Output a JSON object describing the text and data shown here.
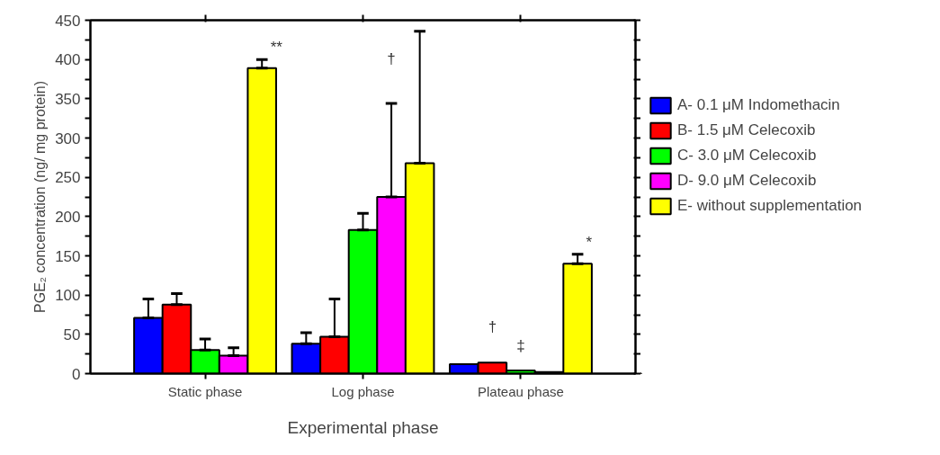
{
  "chart_data": {
    "type": "bar",
    "categories": [
      "Static phase",
      "Log phase",
      "Plateau phase"
    ],
    "xlabel": "Experimental phase",
    "ylabel": "PGE₂ concentration (ng/ mg protein)",
    "ylim": [
      0,
      450
    ],
    "yticks": [
      0,
      {
        "value": 25,
        "label": null
      },
      50,
      {
        "value": 75,
        "label": null
      },
      100,
      {
        "value": 125,
        "label": null
      },
      150,
      {
        "value": 175,
        "label": null
      },
      200,
      {
        "value": 225,
        "label": null
      },
      250,
      {
        "value": 275,
        "label": null
      },
      300,
      {
        "value": 325,
        "label": null
      },
      350,
      {
        "value": 375,
        "label": null
      },
      400,
      {
        "value": 425,
        "label": null
      },
      450
    ],
    "series": [
      {
        "name": "A- 0.1 μM Indomethacin",
        "color": "#0000ff",
        "values": [
          71,
          38,
          12
        ],
        "errors": [
          [
            71,
            95
          ],
          [
            38,
            52
          ],
          null
        ]
      },
      {
        "name": "B- 1.5 μM Celecoxib",
        "color": "#ff0000",
        "values": [
          88,
          47,
          14
        ],
        "errors": [
          [
            88,
            102
          ],
          [
            47,
            95
          ],
          null
        ]
      },
      {
        "name": "C- 3.0 μM Celecoxib",
        "color": "#00ff00",
        "values": [
          30,
          183,
          4
        ],
        "errors": [
          [
            30,
            44
          ],
          [
            183,
            204
          ],
          null
        ]
      },
      {
        "name": "D- 9.0 μM Celecoxib",
        "color": "#ff00ff",
        "values": [
          23,
          225,
          2
        ],
        "errors": [
          [
            23,
            33
          ],
          [
            225,
            344
          ],
          null
        ]
      },
      {
        "name": "E- without supplementation",
        "color": "#ffff00",
        "values": [
          389,
          268,
          140
        ],
        "errors": [
          [
            389,
            400
          ],
          [
            268,
            436
          ],
          [
            140,
            152
          ]
        ]
      }
    ],
    "annotations": [
      "**",
      "†",
      "†",
      "‡",
      "*"
    ],
    "legend": "right",
    "grid": false
  }
}
